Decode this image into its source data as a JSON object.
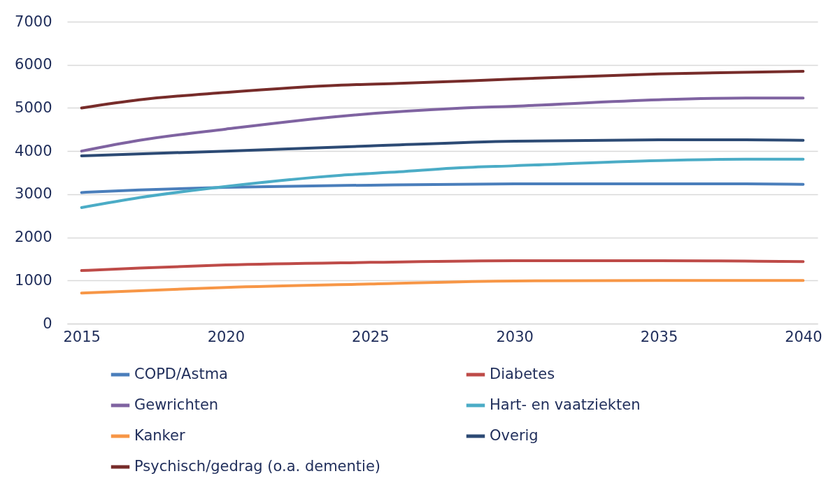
{
  "chart_data": {
    "type": "line",
    "xlim": [
      2014.5,
      2040.5
    ],
    "xticks": [
      2015,
      2020,
      2025,
      2030,
      2035,
      2040
    ],
    "ylim": [
      0,
      7000
    ],
    "yticks": [
      0,
      1000,
      2000,
      3000,
      4000,
      5000,
      6000,
      7000
    ],
    "grid": "y",
    "legend": "bottom",
    "line_style": "solid",
    "marker": "none",
    "series": [
      {
        "name": "COPD/Astma",
        "color": "#4a7ebb",
        "x": [
          2015,
          2017,
          2020,
          2025,
          2030,
          2035,
          2038,
          2040
        ],
        "values": [
          3040,
          3100,
          3160,
          3210,
          3240,
          3240,
          3240,
          3230
        ]
      },
      {
        "name": "Diabetes",
        "color": "#be4b48",
        "x": [
          2015,
          2017,
          2020,
          2025,
          2030,
          2035,
          2038,
          2040
        ],
        "values": [
          1230,
          1290,
          1360,
          1420,
          1460,
          1460,
          1450,
          1440
        ]
      },
      {
        "name": "Gewrichten",
        "color": "#7f63a1",
        "x": [
          2015,
          2017,
          2020,
          2024,
          2028,
          2030,
          2035,
          2038,
          2040
        ],
        "values": [
          4000,
          4250,
          4510,
          4810,
          4990,
          5040,
          5190,
          5230,
          5230
        ]
      },
      {
        "name": "Hart- en vaatziekten",
        "color": "#4bacc6",
        "x": [
          2015,
          2017,
          2020,
          2024,
          2026,
          2028,
          2030,
          2035,
          2038,
          2040
        ],
        "values": [
          2690,
          2920,
          3180,
          3440,
          3520,
          3610,
          3660,
          3780,
          3810,
          3810
        ]
      },
      {
        "name": "Kanker",
        "color": "#f79646",
        "x": [
          2015,
          2017,
          2020,
          2025,
          2030,
          2035,
          2040
        ],
        "values": [
          710,
          760,
          840,
          920,
          990,
          1000,
          1000
        ]
      },
      {
        "name": "Overig",
        "color": "#2c4a74",
        "x": [
          2015,
          2020,
          2025,
          2030,
          2035,
          2038,
          2040
        ],
        "values": [
          3890,
          4000,
          4120,
          4230,
          4260,
          4260,
          4250
        ]
      },
      {
        "name": "Psychisch/gedrag (o.a. dementie)",
        "color": "#772c2a",
        "x": [
          2015,
          2017,
          2020,
          2024,
          2026,
          2030,
          2035,
          2040
        ],
        "values": [
          5000,
          5190,
          5360,
          5530,
          5570,
          5670,
          5790,
          5850
        ]
      }
    ]
  }
}
